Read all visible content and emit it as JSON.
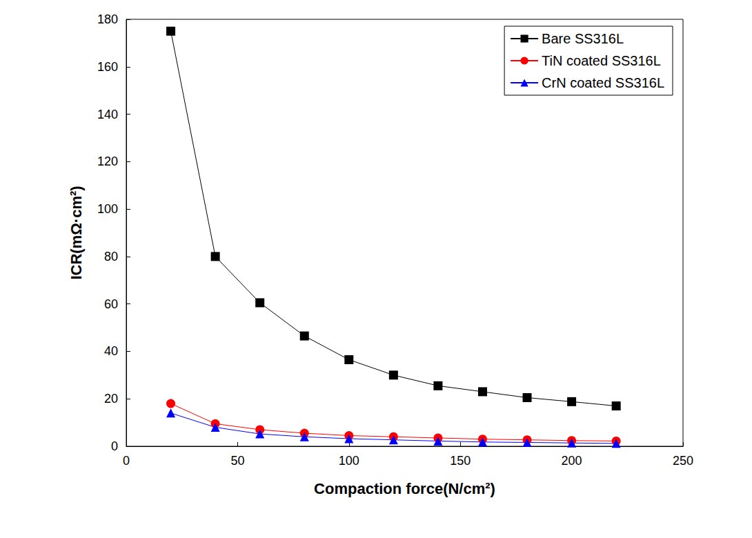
{
  "chart_data": {
    "type": "line",
    "x_label": "Compaction force(N/cm²)",
    "y_label": "ICR(mΩ·cm²)",
    "x": [
      20,
      40,
      60,
      80,
      100,
      120,
      140,
      160,
      180,
      200,
      220
    ],
    "series": [
      {
        "name": "Bare SS316L",
        "color": "#000000",
        "marker": "square",
        "values": [
          175,
          80,
          60.5,
          46.5,
          36.5,
          30,
          25.5,
          23,
          20.5,
          18.8,
          17
        ]
      },
      {
        "name": "TiN coated SS316L",
        "color": "#ff0000",
        "marker": "circle",
        "values": [
          18,
          9.5,
          7,
          5.5,
          4.5,
          4,
          3.5,
          3,
          2.7,
          2.4,
          2.2
        ]
      },
      {
        "name": "CrN coated SS316L",
        "color": "#0000ff",
        "marker": "triangle",
        "values": [
          14,
          8,
          5.2,
          4,
          3.2,
          2.7,
          2.2,
          1.8,
          1.6,
          1.4,
          1.2
        ]
      }
    ],
    "xlim": [
      0,
      250
    ],
    "xticks": [
      0,
      50,
      100,
      150,
      200,
      250
    ],
    "ylim": [
      0,
      180
    ],
    "yticks": [
      0,
      20,
      40,
      60,
      80,
      100,
      120,
      140,
      160,
      180
    ],
    "legend": "upper right",
    "grid": false
  }
}
